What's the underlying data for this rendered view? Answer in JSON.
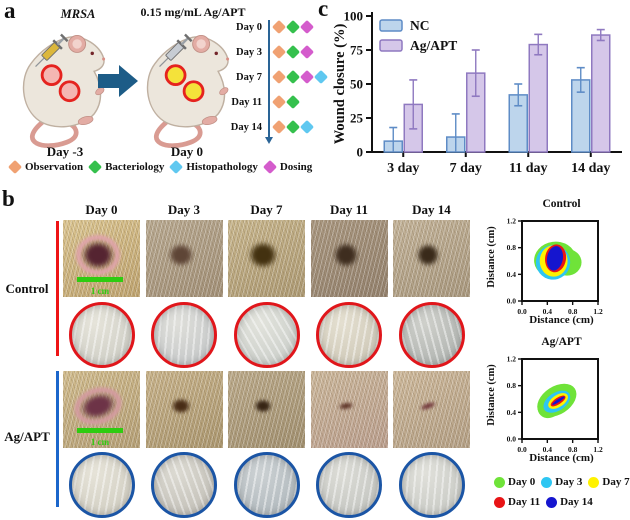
{
  "figure": {
    "panel_a": {
      "label": "a",
      "mrsa_label": "MRSA",
      "treatment_label": "0.15 mg/mL Ag/APT",
      "left_mouse_day": "Day -3",
      "right_mouse_day": "Day 0",
      "timeline_days": [
        {
          "day": "Day 0",
          "events": [
            "observation",
            "bacteriology",
            "dosing"
          ]
        },
        {
          "day": "Day 3",
          "events": [
            "observation",
            "bacteriology",
            "dosing"
          ]
        },
        {
          "day": "Day 7",
          "events": [
            "observation",
            "bacteriology",
            "dosing",
            "histopathology"
          ]
        },
        {
          "day": "Day 11",
          "events": [
            "observation",
            "bacteriology"
          ]
        },
        {
          "day": "Day 14",
          "events": [
            "observation",
            "bacteriology",
            "histopathology"
          ]
        }
      ],
      "event_colors": {
        "observation": "#f0a172",
        "bacteriology": "#35c04d",
        "histopathology": "#5fc8f0",
        "dosing": "#d45ccc"
      },
      "legend": [
        {
          "key": "observation",
          "label": "Observation"
        },
        {
          "key": "bacteriology",
          "label": "Bacteriology"
        },
        {
          "key": "histopathology",
          "label": "Histopathology"
        },
        {
          "key": "dosing",
          "label": "Dosing"
        }
      ],
      "arrow_color": "#1d5c87"
    },
    "panel_b": {
      "label": "b",
      "columns": [
        "Day 0",
        "Day 3",
        "Day 7",
        "Day 11",
        "Day 14"
      ],
      "rows": [
        {
          "label": "Control",
          "bar_color": "#ee1416",
          "dish_ring_color": "#e0161b"
        },
        {
          "label": "Ag/APT",
          "bar_color": "#1b66cb",
          "dish_ring_color": "#1b55a5"
        }
      ],
      "scale_bar_label": "1 cm",
      "scale_bar_color": "#2ecc10"
    },
    "panel_c": {
      "label": "c"
    }
  },
  "chart_data": [
    {
      "type": "bar",
      "title": "",
      "categories": [
        "3 day",
        "7 day",
        "11 day",
        "14 day"
      ],
      "series": [
        {
          "name": "NC",
          "values": [
            8,
            11,
            42,
            53
          ],
          "errors": [
            10,
            17,
            8,
            9
          ],
          "fill": "#bdd5ec",
          "stroke": "#5e8cc6"
        },
        {
          "name": "Ag/APT",
          "values": [
            35,
            58,
            79,
            86
          ],
          "errors": [
            18,
            17,
            7.5,
            4
          ],
          "fill": "#d5c7e9",
          "stroke": "#8f79c0"
        }
      ],
      "xlabel": "",
      "ylabel": "Wound closure (%)",
      "ylim": [
        0,
        100
      ],
      "yticks": [
        0,
        25,
        50,
        75,
        100
      ],
      "legend_position": "top-left",
      "grid": false
    },
    {
      "type": "contour",
      "title": "Control",
      "xlabel": "Distance (cm)",
      "ylabel": "Distance (cm)",
      "xlim": [
        0,
        1.2
      ],
      "ylim": [
        0,
        1.2
      ],
      "ticks": [
        0,
        0.4,
        0.8,
        1.2
      ],
      "layers": [
        {
          "name": "Day 0",
          "color": "#6fe339",
          "ellipses": [
            {
              "cx": 0.52,
              "cy": 0.62,
              "rx": 0.33,
              "ry": 0.27,
              "rot": -8
            },
            {
              "cx": 0.71,
              "cy": 0.58,
              "rx": 0.23,
              "ry": 0.2,
              "rot": 0
            }
          ]
        },
        {
          "name": "Day 3",
          "color": "#2ec6f2",
          "ellipses": [
            {
              "cx": 0.49,
              "cy": 0.58,
              "rx": 0.27,
              "ry": 0.26,
              "rot": 6
            }
          ]
        },
        {
          "name": "Day 7",
          "color": "#fff200",
          "ellipses": [
            {
              "cx": 0.5,
              "cy": 0.6,
              "rx": 0.22,
              "ry": 0.235,
              "rot": 0
            }
          ]
        },
        {
          "name": "Day 11",
          "color": "#e81416",
          "ellipses": [
            {
              "cx": 0.53,
              "cy": 0.64,
              "rx": 0.165,
              "ry": 0.21,
              "rot": 8
            }
          ]
        },
        {
          "name": "Day 14",
          "color": "#1515cf",
          "ellipses": [
            {
              "cx": 0.52,
              "cy": 0.64,
              "rx": 0.125,
              "ry": 0.185,
              "rot": 10
            }
          ]
        }
      ]
    },
    {
      "type": "contour",
      "title": "Ag/APT",
      "xlabel": "Distance (cm)",
      "ylabel": "Distance (cm)",
      "xlim": [
        0,
        1.2
      ],
      "ylim": [
        0,
        1.2
      ],
      "ticks": [
        0,
        0.4,
        0.8,
        1.2
      ],
      "layers": [
        {
          "name": "Day 0",
          "color": "#6fe339",
          "ellipses": [
            {
              "cx": 0.55,
              "cy": 0.58,
              "rx": 0.34,
              "ry": 0.21,
              "rot": -33
            },
            {
              "cx": 0.43,
              "cy": 0.48,
              "rx": 0.19,
              "ry": 0.16,
              "rot": -33
            }
          ]
        },
        {
          "name": "Day 3",
          "color": "#2ec6f2",
          "ellipses": [
            {
              "cx": 0.55,
              "cy": 0.56,
              "rx": 0.235,
              "ry": 0.135,
              "rot": -33
            }
          ]
        },
        {
          "name": "Day 7",
          "color": "#fff200",
          "ellipses": [
            {
              "cx": 0.57,
              "cy": 0.57,
              "rx": 0.175,
              "ry": 0.09,
              "rot": -33
            }
          ]
        },
        {
          "name": "Day 11",
          "color": "#e81416",
          "ellipses": [
            {
              "cx": 0.57,
              "cy": 0.57,
              "rx": 0.135,
              "ry": 0.05,
              "rot": -33
            }
          ]
        },
        {
          "name": "Day 14",
          "color": "#1515cf",
          "ellipses": [
            {
              "cx": 0.575,
              "cy": 0.575,
              "rx": 0.115,
              "ry": 0.022,
              "rot": -33
            }
          ]
        }
      ]
    }
  ]
}
